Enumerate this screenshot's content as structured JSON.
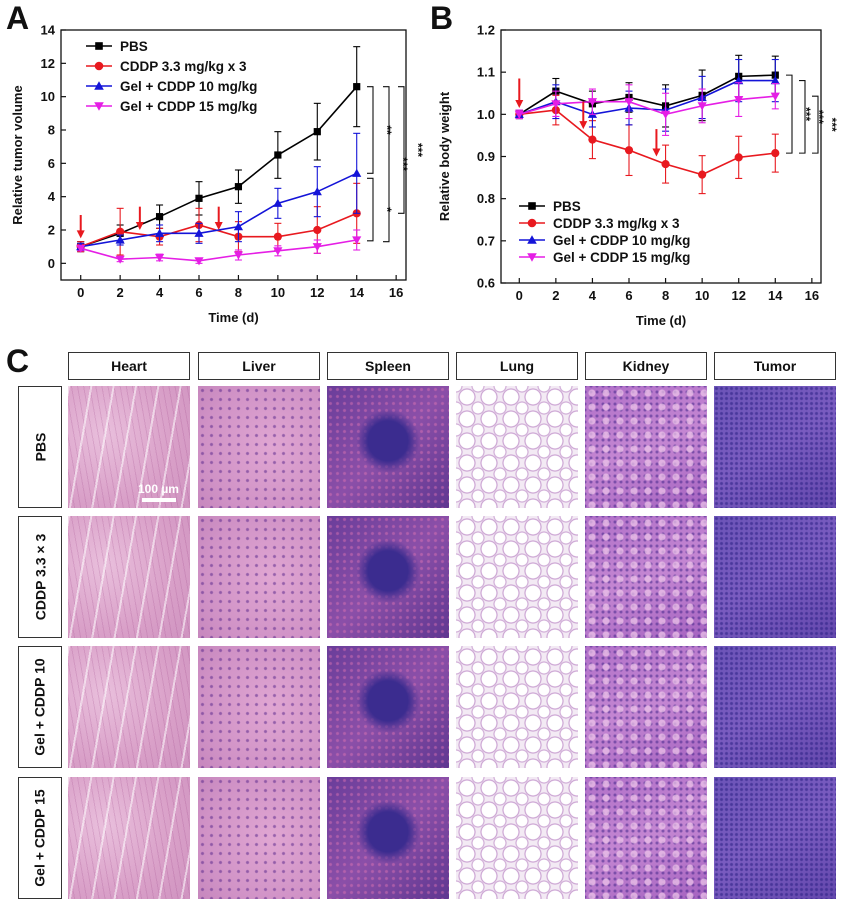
{
  "panel_letters": {
    "a": "A",
    "b": "B",
    "c": "C"
  },
  "chart_data": [
    {
      "type": "line",
      "panel": "A",
      "xlabel": "Time (d)",
      "ylabel": "Relative tumor volume",
      "xlim": [
        -1,
        16.5
      ],
      "ylim": [
        -1,
        14
      ],
      "xticks": [
        0,
        2,
        4,
        6,
        8,
        10,
        12,
        14,
        16
      ],
      "yticks": [
        0,
        2,
        4,
        6,
        8,
        10,
        12,
        14
      ],
      "x": [
        0,
        2,
        4,
        6,
        8,
        10,
        12,
        14
      ],
      "legend_position": "top-left",
      "series": [
        {
          "name": "PBS",
          "color": "#000000",
          "marker": "square",
          "values": [
            1.0,
            1.8,
            2.8,
            3.9,
            4.6,
            6.5,
            7.9,
            10.6
          ],
          "errors": [
            0.3,
            0.5,
            0.7,
            1.0,
            1.0,
            1.4,
            1.7,
            2.4
          ]
        },
        {
          "name": "CDDP 3.3 mg/kg x 3",
          "color": "#e8191f",
          "marker": "circle",
          "values": [
            1.0,
            1.9,
            1.6,
            2.3,
            1.6,
            1.6,
            2.0,
            3.0
          ],
          "errors": [
            0.3,
            1.4,
            0.5,
            1.0,
            0.9,
            0.8,
            1.4,
            1.8
          ]
        },
        {
          "name": "Gel + CDDP 10 mg/kg",
          "color": "#1414d8",
          "marker": "triangle-up",
          "values": [
            1.0,
            1.4,
            1.8,
            1.8,
            2.2,
            3.6,
            4.3,
            5.4
          ],
          "errors": [
            0.2,
            0.3,
            0.5,
            0.6,
            0.9,
            0.9,
            1.5,
            2.4
          ]
        },
        {
          "name": "Gel + CDDP 15 mg/kg",
          "color": "#e51ee5",
          "marker": "triangle-down",
          "values": [
            0.9,
            0.25,
            0.35,
            0.15,
            0.5,
            0.75,
            1.0,
            1.4
          ],
          "errors": [
            0.15,
            0.15,
            0.2,
            0.15,
            0.3,
            0.3,
            0.4,
            0.6
          ]
        }
      ],
      "arrows_at_x": [
        0,
        3,
        7
      ],
      "significance": [
        {
          "label": "**",
          "from": "PBS",
          "to": "Gel + CDDP 10 mg/kg"
        },
        {
          "label": "*",
          "from": "Gel + CDDP 10 mg/kg",
          "to": "Gel + CDDP 15 mg/kg"
        },
        {
          "label": "***",
          "from": "PBS",
          "to": "Gel + CDDP 15 mg/kg"
        },
        {
          "label": "***",
          "from": "PBS",
          "to": "CDDP 3.3 mg/kg x 3"
        }
      ]
    },
    {
      "type": "line",
      "panel": "B",
      "xlabel": "Time (d)",
      "ylabel": "Relative body weight",
      "xlim": [
        -1,
        16.5
      ],
      "ylim": [
        0.6,
        1.2
      ],
      "xticks": [
        0,
        2,
        4,
        6,
        8,
        10,
        12,
        14,
        16
      ],
      "yticks": [
        0.6,
        0.7,
        0.8,
        0.9,
        1.0,
        1.1,
        1.2
      ],
      "x": [
        0,
        2,
        4,
        6,
        8,
        10,
        12,
        14
      ],
      "legend_position": "bottom-left",
      "series": [
        {
          "name": "PBS",
          "color": "#000000",
          "marker": "square",
          "values": [
            1.0,
            1.055,
            1.025,
            1.04,
            1.02,
            1.045,
            1.09,
            1.093
          ],
          "errors": [
            0.01,
            0.03,
            0.03,
            0.035,
            0.05,
            0.06,
            0.05,
            0.045
          ]
        },
        {
          "name": "CDDP 3.3 mg/kg x 3",
          "color": "#e8191f",
          "marker": "circle",
          "values": [
            1.0,
            1.01,
            0.94,
            0.915,
            0.882,
            0.857,
            0.898,
            0.908
          ],
          "errors": [
            0.01,
            0.035,
            0.045,
            0.06,
            0.045,
            0.045,
            0.05,
            0.045
          ]
        },
        {
          "name": "Gel + CDDP 10 mg/kg",
          "color": "#1414d8",
          "marker": "triangle-up",
          "values": [
            1.0,
            1.03,
            1.0,
            1.015,
            1.01,
            1.04,
            1.08,
            1.08
          ],
          "errors": [
            0.01,
            0.04,
            0.03,
            0.04,
            0.05,
            0.05,
            0.05,
            0.05
          ]
        },
        {
          "name": "Gel + CDDP 15 mg/kg",
          "color": "#e51ee5",
          "marker": "triangle-down",
          "values": [
            1.0,
            1.025,
            1.03,
            1.03,
            1.0,
            1.02,
            1.035,
            1.043
          ],
          "errors": [
            0.01,
            0.03,
            0.03,
            0.04,
            0.05,
            0.04,
            0.04,
            0.03
          ]
        }
      ],
      "arrows_at_x": [
        0,
        3.5,
        7.5
      ],
      "significance": [
        {
          "label": "***",
          "from": "PBS",
          "to": "CDDP 3.3 mg/kg x 3"
        },
        {
          "label": "***",
          "from": "Gel + CDDP 10 mg/kg",
          "to": "CDDP 3.3 mg/kg x 3"
        },
        {
          "label": "***",
          "from": "Gel + CDDP 15 mg/kg",
          "to": "CDDP 3.3 mg/kg x 3"
        }
      ]
    }
  ],
  "histology": {
    "columns": [
      "Heart",
      "Liver",
      "Spleen",
      "Lung",
      "Kidney",
      "Tumor"
    ],
    "rows": [
      "PBS",
      "CDDP 3.3 × 3",
      "Gel + CDDP 10",
      "Gel + CDDP 15"
    ],
    "scale_bar": "100 µm",
    "stain_colors": {
      "eosin_pink": "#d99ac6",
      "hematoxylin_purple": "#5b3e9e"
    }
  }
}
